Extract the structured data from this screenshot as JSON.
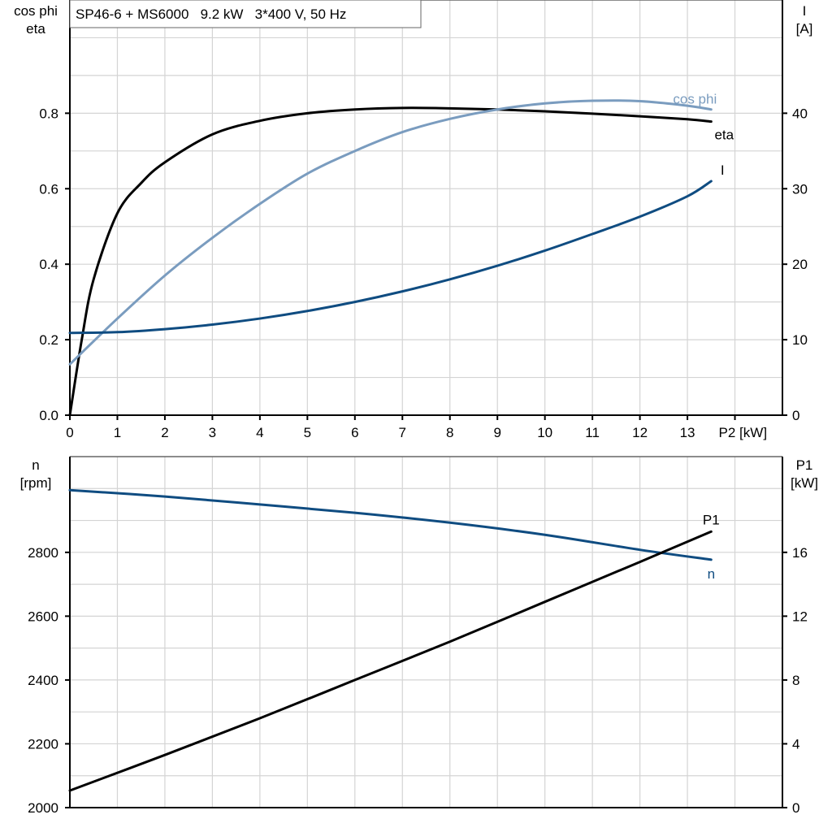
{
  "title": "SP46-6 + MS6000   9.2 kW   3*400 V, 50 Hz",
  "chart_data": [
    {
      "type": "line",
      "xlabel": "P2 [kW]",
      "xlim": [
        0,
        15
      ],
      "x_ticks": [
        "0",
        "1",
        "2",
        "3",
        "4",
        "5",
        "6",
        "7",
        "8",
        "9",
        "10",
        "11",
        "12",
        "13"
      ],
      "ylabel_left": [
        "cos phi",
        "eta"
      ],
      "ylim_left": [
        0,
        1.1
      ],
      "y_ticks_left": [
        "0.0",
        "0.2",
        "0.4",
        "0.6",
        "0.8"
      ],
      "ylabel_right": [
        "I",
        "[A]"
      ],
      "ylim_right": [
        0,
        55
      ],
      "y_ticks_right": [
        "0",
        "10",
        "20",
        "30",
        "40"
      ],
      "grid": true,
      "series": [
        {
          "name": "eta",
          "axis": "left",
          "color": "#000000",
          "x": [
            0,
            0.25,
            0.5,
            1,
            1.5,
            2,
            3,
            4,
            5,
            6,
            7,
            8,
            9,
            10,
            11,
            12,
            13,
            13.5
          ],
          "y": [
            0,
            0.2,
            0.36,
            0.535,
            0.615,
            0.67,
            0.744,
            0.78,
            0.8,
            0.81,
            0.814,
            0.813,
            0.81,
            0.805,
            0.799,
            0.792,
            0.784,
            0.778
          ]
        },
        {
          "name": "cos phi",
          "axis": "left",
          "color": "#7a9cbf",
          "x": [
            0,
            1,
            2,
            3,
            4,
            5,
            6,
            7,
            8,
            9,
            10,
            11,
            12,
            13,
            13.5
          ],
          "y": [
            0.135,
            0.256,
            0.37,
            0.47,
            0.56,
            0.64,
            0.7,
            0.75,
            0.785,
            0.81,
            0.826,
            0.833,
            0.832,
            0.82,
            0.81
          ]
        },
        {
          "name": "I",
          "axis": "right",
          "color": "#0f4c81",
          "x": [
            0,
            1,
            2,
            3,
            4,
            5,
            6,
            7,
            8,
            9,
            10,
            11,
            12,
            13,
            13.5
          ],
          "y": [
            10.9,
            11.0,
            11.4,
            12.0,
            12.8,
            13.8,
            15.0,
            16.4,
            18.0,
            19.8,
            21.8,
            24.0,
            26.3,
            29.0,
            31.0
          ]
        }
      ]
    },
    {
      "type": "line",
      "xlim": [
        0,
        15
      ],
      "ylabel_left": [
        "n",
        "[rpm]"
      ],
      "ylim_left": [
        2000,
        3100
      ],
      "y_ticks_left": [
        "2000",
        "2200",
        "2400",
        "2600",
        "2800"
      ],
      "ylabel_right": [
        "P1",
        "[kW]"
      ],
      "ylim_right": [
        0,
        22
      ],
      "y_ticks_right": [
        "0",
        "4",
        "8",
        "12",
        "16"
      ],
      "grid": true,
      "series": [
        {
          "name": "n",
          "axis": "left",
          "color": "#0f4c81",
          "x": [
            0,
            2,
            4,
            6,
            8,
            10,
            12,
            13.5
          ],
          "y": [
            2995,
            2975,
            2950,
            2924,
            2893,
            2855,
            2808,
            2777
          ]
        },
        {
          "name": "P1",
          "axis": "right",
          "color": "#000000",
          "x": [
            0,
            2,
            4,
            6,
            8,
            10,
            12,
            13.5
          ],
          "y": [
            1.07,
            3.3,
            5.6,
            8.0,
            10.4,
            12.9,
            15.4,
            17.3
          ]
        }
      ]
    }
  ]
}
